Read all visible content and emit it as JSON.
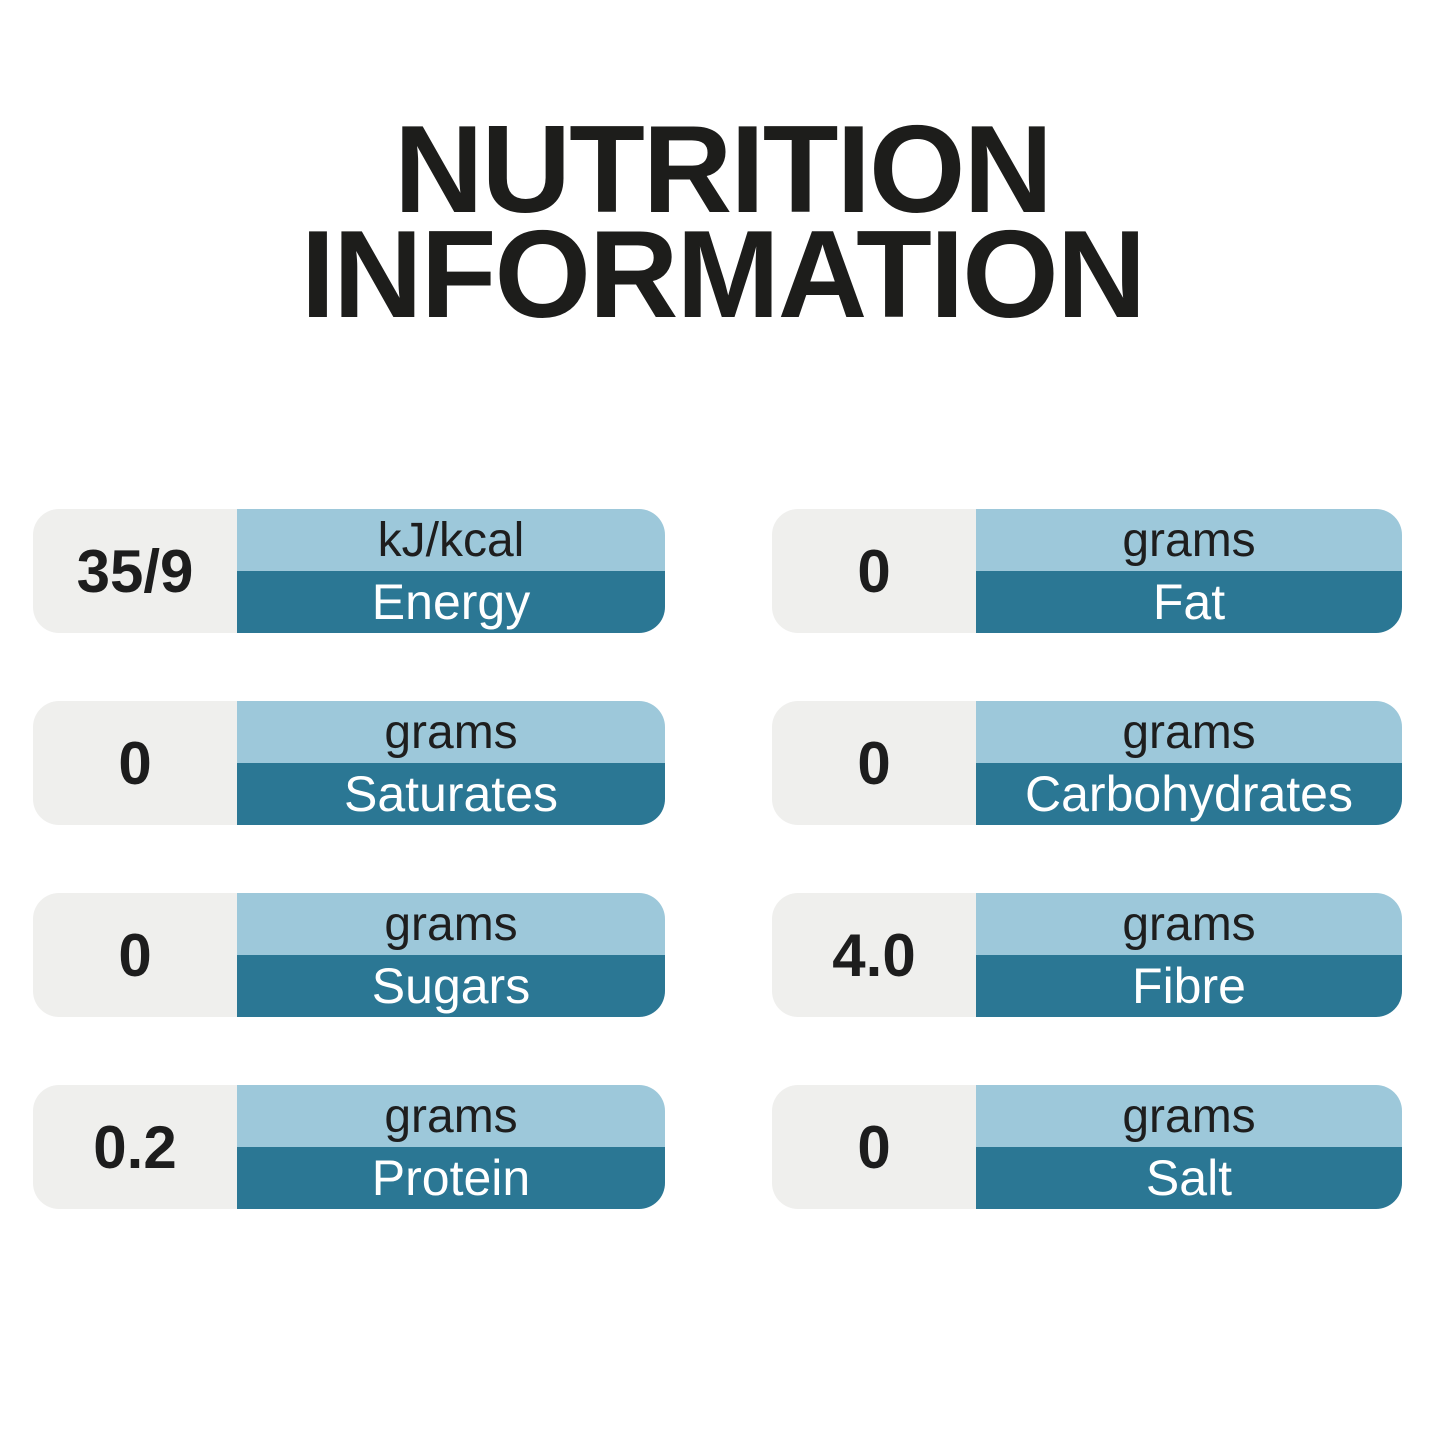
{
  "title": {
    "line1": "NUTRITION",
    "line2": "INFORMATION"
  },
  "colors": {
    "background": "#ffffff",
    "value_panel_gray": "#efefed",
    "unit_band_light_blue": "#9dc8da",
    "label_band_teal": "#2b7794",
    "title_text": "#1d1d1b",
    "value_text": "#1d1d1d",
    "unit_text": "#1e1e1e",
    "label_text": "#ffffff"
  },
  "cards": [
    {
      "value": "35/9",
      "unit": "kJ/kcal",
      "label": "Energy"
    },
    {
      "value": "0",
      "unit": "grams",
      "label": "Fat"
    },
    {
      "value": "0",
      "unit": "grams",
      "label": "Saturates"
    },
    {
      "value": "0",
      "unit": "grams",
      "label": "Carbohydrates"
    },
    {
      "value": "0",
      "unit": "grams",
      "label": "Sugars"
    },
    {
      "value": "4.0",
      "unit": "grams",
      "label": "Fibre"
    },
    {
      "value": "0.2",
      "unit": "grams",
      "label": "Protein"
    },
    {
      "value": "0",
      "unit": "grams",
      "label": "Salt"
    }
  ]
}
